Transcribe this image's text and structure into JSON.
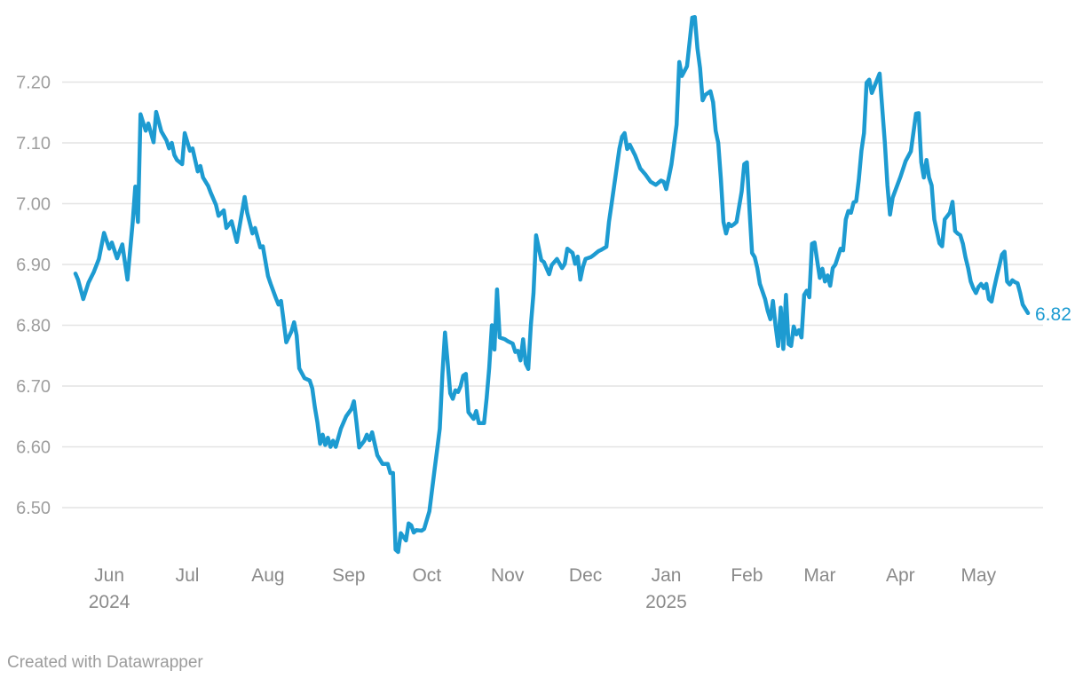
{
  "attribution": {
    "text": "Created with Datawrapper"
  },
  "chart_data": {
    "type": "line",
    "title": "",
    "xlabel": "",
    "ylabel": "",
    "legend": "none",
    "grid": "horizontal-only",
    "ylim": [
      6.4,
      7.32
    ],
    "x_range": [
      "2024-05-19",
      "2025-05-20"
    ],
    "end_label": "6.82",
    "colors": {
      "line": "#1D9BD1",
      "grid": "#E4E4E4",
      "y_tick_text": "#9E9E9E",
      "x_tick_text": "#8A8A8A",
      "attribution_text": "#9C9C9C",
      "background": "#FFFFFF"
    },
    "y_axis": {
      "ticks": [
        {
          "value": 6.5,
          "label": "6.50"
        },
        {
          "value": 6.6,
          "label": "6.60"
        },
        {
          "value": 6.7,
          "label": "6.70"
        },
        {
          "value": 6.8,
          "label": "6.80"
        },
        {
          "value": 6.9,
          "label": "6.90"
        },
        {
          "value": 7.0,
          "label": "7.00"
        },
        {
          "value": 7.1,
          "label": "7.10"
        },
        {
          "value": 7.2,
          "label": "7.20"
        }
      ]
    },
    "x_axis": {
      "ticks": [
        {
          "label": "Jun",
          "sub": "2024",
          "date": "2024-06-01"
        },
        {
          "label": "Jul",
          "sub": "",
          "date": "2024-07-01"
        },
        {
          "label": "Aug",
          "sub": "",
          "date": "2024-08-01"
        },
        {
          "label": "Sep",
          "sub": "",
          "date": "2024-09-01"
        },
        {
          "label": "Oct",
          "sub": "",
          "date": "2024-10-01"
        },
        {
          "label": "Nov",
          "sub": "",
          "date": "2024-11-01"
        },
        {
          "label": "Dec",
          "sub": "",
          "date": "2024-12-01"
        },
        {
          "label": "Jan",
          "sub": "2025",
          "date": "2025-01-01"
        },
        {
          "label": "Feb",
          "sub": "",
          "date": "2025-02-01"
        },
        {
          "label": "Mar",
          "sub": "",
          "date": "2025-03-01"
        },
        {
          "label": "Apr",
          "sub": "",
          "date": "2025-04-01"
        },
        {
          "label": "May",
          "sub": "",
          "date": "2025-05-01"
        }
      ]
    },
    "points": [
      [
        "2024-05-19",
        6.885
      ],
      [
        "2024-05-20",
        6.875
      ],
      [
        "2024-05-22",
        6.843
      ],
      [
        "2024-05-24",
        6.87
      ],
      [
        "2024-05-26",
        6.887
      ],
      [
        "2024-05-28",
        6.909
      ],
      [
        "2024-05-30",
        6.952
      ],
      [
        "2024-06-01",
        6.926
      ],
      [
        "2024-06-02",
        6.936
      ],
      [
        "2024-06-04",
        6.91
      ],
      [
        "2024-06-06",
        6.933
      ],
      [
        "2024-06-08",
        6.875
      ],
      [
        "2024-06-10",
        6.97
      ],
      [
        "2024-06-11",
        7.028
      ],
      [
        "2024-06-12",
        6.97
      ],
      [
        "2024-06-13",
        7.147
      ],
      [
        "2024-06-15",
        7.12
      ],
      [
        "2024-06-16",
        7.132
      ],
      [
        "2024-06-18",
        7.101
      ],
      [
        "2024-06-19",
        7.151
      ],
      [
        "2024-06-21",
        7.119
      ],
      [
        "2024-06-23",
        7.104
      ],
      [
        "2024-06-24",
        7.091
      ],
      [
        "2024-06-25",
        7.1
      ],
      [
        "2024-06-26",
        7.08
      ],
      [
        "2024-06-27",
        7.072
      ],
      [
        "2024-06-29",
        7.065
      ],
      [
        "2024-06-30",
        7.116
      ],
      [
        "2024-07-02",
        7.087
      ],
      [
        "2024-07-03",
        7.091
      ],
      [
        "2024-07-05",
        7.053
      ],
      [
        "2024-07-06",
        7.062
      ],
      [
        "2024-07-07",
        7.043
      ],
      [
        "2024-07-09",
        7.029
      ],
      [
        "2024-07-10",
        7.018
      ],
      [
        "2024-07-12",
        6.998
      ],
      [
        "2024-07-13",
        6.98
      ],
      [
        "2024-07-15",
        6.989
      ],
      [
        "2024-07-16",
        6.96
      ],
      [
        "2024-07-18",
        6.971
      ],
      [
        "2024-07-20",
        6.937
      ],
      [
        "2024-07-23",
        7.011
      ],
      [
        "2024-07-24",
        6.985
      ],
      [
        "2024-07-26",
        6.951
      ],
      [
        "2024-07-27",
        6.96
      ],
      [
        "2024-07-29",
        6.928
      ],
      [
        "2024-07-30",
        6.93
      ],
      [
        "2024-08-01",
        6.881
      ],
      [
        "2024-08-02",
        6.868
      ],
      [
        "2024-08-04",
        6.845
      ],
      [
        "2024-08-05",
        6.834
      ],
      [
        "2024-08-06",
        6.84
      ],
      [
        "2024-08-07",
        6.807
      ],
      [
        "2024-08-08",
        6.772
      ],
      [
        "2024-08-10",
        6.79
      ],
      [
        "2024-08-11",
        6.805
      ],
      [
        "2024-08-12",
        6.783
      ],
      [
        "2024-08-13",
        6.729
      ],
      [
        "2024-08-15",
        6.713
      ],
      [
        "2024-08-17",
        6.709
      ],
      [
        "2024-08-18",
        6.696
      ],
      [
        "2024-08-19",
        6.665
      ],
      [
        "2024-08-20",
        6.64
      ],
      [
        "2024-08-21",
        6.605
      ],
      [
        "2024-08-22",
        6.62
      ],
      [
        "2024-08-23",
        6.603
      ],
      [
        "2024-08-24",
        6.615
      ],
      [
        "2024-08-25",
        6.6
      ],
      [
        "2024-08-26",
        6.61
      ],
      [
        "2024-08-27",
        6.6
      ],
      [
        "2024-08-29",
        6.63
      ],
      [
        "2024-08-31",
        6.65
      ],
      [
        "2024-09-02",
        6.662
      ],
      [
        "2024-09-03",
        6.675
      ],
      [
        "2024-09-04",
        6.64
      ],
      [
        "2024-09-05",
        6.599
      ],
      [
        "2024-09-07",
        6.61
      ],
      [
        "2024-09-08",
        6.62
      ],
      [
        "2024-09-09",
        6.611
      ],
      [
        "2024-09-10",
        6.624
      ],
      [
        "2024-09-12",
        6.586
      ],
      [
        "2024-09-13",
        6.579
      ],
      [
        "2024-09-14",
        6.572
      ],
      [
        "2024-09-16",
        6.572
      ],
      [
        "2024-09-17",
        6.557
      ],
      [
        "2024-09-18",
        6.557
      ],
      [
        "2024-09-19",
        6.431
      ],
      [
        "2024-09-20",
        6.427
      ],
      [
        "2024-09-21",
        6.458
      ],
      [
        "2024-09-23",
        6.446
      ],
      [
        "2024-09-24",
        6.474
      ],
      [
        "2024-09-25",
        6.471
      ],
      [
        "2024-09-26",
        6.459
      ],
      [
        "2024-09-27",
        6.463
      ],
      [
        "2024-09-29",
        6.462
      ],
      [
        "2024-09-30",
        6.465
      ],
      [
        "2024-10-02",
        6.494
      ],
      [
        "2024-10-03",
        6.528
      ],
      [
        "2024-10-04",
        6.563
      ],
      [
        "2024-10-05",
        6.596
      ],
      [
        "2024-10-06",
        6.63
      ],
      [
        "2024-10-07",
        6.72
      ],
      [
        "2024-10-08",
        6.788
      ],
      [
        "2024-10-09",
        6.74
      ],
      [
        "2024-10-10",
        6.688
      ],
      [
        "2024-10-11",
        6.679
      ],
      [
        "2024-10-12",
        6.693
      ],
      [
        "2024-10-13",
        6.69
      ],
      [
        "2024-10-14",
        6.7
      ],
      [
        "2024-10-15",
        6.717
      ],
      [
        "2024-10-16",
        6.72
      ],
      [
        "2024-10-17",
        6.657
      ],
      [
        "2024-10-19",
        6.646
      ],
      [
        "2024-10-20",
        6.659
      ],
      [
        "2024-10-21",
        6.639
      ],
      [
        "2024-10-23",
        6.639
      ],
      [
        "2024-10-24",
        6.68
      ],
      [
        "2024-10-25",
        6.73
      ],
      [
        "2024-10-26",
        6.8
      ],
      [
        "2024-10-27",
        6.76
      ],
      [
        "2024-10-28",
        6.859
      ],
      [
        "2024-10-29",
        6.78
      ],
      [
        "2024-10-31",
        6.777
      ],
      [
        "2024-11-01",
        6.774
      ],
      [
        "2024-11-03",
        6.77
      ],
      [
        "2024-11-04",
        6.756
      ],
      [
        "2024-11-05",
        6.758
      ],
      [
        "2024-11-06",
        6.742
      ],
      [
        "2024-11-07",
        6.777
      ],
      [
        "2024-11-08",
        6.737
      ],
      [
        "2024-11-09",
        6.728
      ],
      [
        "2024-11-10",
        6.8
      ],
      [
        "2024-11-11",
        6.853
      ],
      [
        "2024-11-12",
        6.948
      ],
      [
        "2024-11-14",
        6.907
      ],
      [
        "2024-11-15",
        6.904
      ],
      [
        "2024-11-17",
        6.884
      ],
      [
        "2024-11-18",
        6.899
      ],
      [
        "2024-11-20",
        6.909
      ],
      [
        "2024-11-22",
        6.894
      ],
      [
        "2024-11-23",
        6.901
      ],
      [
        "2024-11-24",
        6.926
      ],
      [
        "2024-11-26",
        6.919
      ],
      [
        "2024-11-27",
        6.901
      ],
      [
        "2024-11-28",
        6.913
      ],
      [
        "2024-11-29",
        6.875
      ],
      [
        "2024-11-30",
        6.896
      ],
      [
        "2024-12-01",
        6.909
      ],
      [
        "2024-12-03",
        6.912
      ],
      [
        "2024-12-04",
        6.915
      ],
      [
        "2024-12-06",
        6.922
      ],
      [
        "2024-12-07",
        6.924
      ],
      [
        "2024-12-09",
        6.929
      ],
      [
        "2024-12-10",
        6.97
      ],
      [
        "2024-12-11",
        6.999
      ],
      [
        "2024-12-12",
        7.03
      ],
      [
        "2024-12-13",
        7.06
      ],
      [
        "2024-12-14",
        7.09
      ],
      [
        "2024-12-15",
        7.11
      ],
      [
        "2024-12-16",
        7.116
      ],
      [
        "2024-12-17",
        7.09
      ],
      [
        "2024-12-18",
        7.097
      ],
      [
        "2024-12-20",
        7.08
      ],
      [
        "2024-12-22",
        7.058
      ],
      [
        "2024-12-24",
        7.048
      ],
      [
        "2024-12-26",
        7.036
      ],
      [
        "2024-12-28",
        7.031
      ],
      [
        "2024-12-30",
        7.038
      ],
      [
        "2024-12-31",
        7.036
      ],
      [
        "2025-01-01",
        7.024
      ],
      [
        "2025-01-02",
        7.043
      ],
      [
        "2025-01-03",
        7.065
      ],
      [
        "2025-01-04",
        7.097
      ],
      [
        "2025-01-05",
        7.13
      ],
      [
        "2025-01-06",
        7.233
      ],
      [
        "2025-01-07",
        7.21
      ],
      [
        "2025-01-09",
        7.226
      ],
      [
        "2025-01-11",
        7.306
      ],
      [
        "2025-01-12",
        7.307
      ],
      [
        "2025-01-13",
        7.255
      ],
      [
        "2025-01-14",
        7.223
      ],
      [
        "2025-01-15",
        7.17
      ],
      [
        "2025-01-16",
        7.179
      ],
      [
        "2025-01-18",
        7.185
      ],
      [
        "2025-01-19",
        7.167
      ],
      [
        "2025-01-20",
        7.12
      ],
      [
        "2025-01-21",
        7.1
      ],
      [
        "2025-01-22",
        7.04
      ],
      [
        "2025-01-23",
        6.97
      ],
      [
        "2025-01-24",
        6.951
      ],
      [
        "2025-01-25",
        6.967
      ],
      [
        "2025-01-26",
        6.963
      ],
      [
        "2025-01-27",
        6.966
      ],
      [
        "2025-01-28",
        6.97
      ],
      [
        "2025-01-30",
        7.02
      ],
      [
        "2025-01-31",
        7.065
      ],
      [
        "2025-02-01",
        7.068
      ],
      [
        "2025-02-02",
        6.99
      ],
      [
        "2025-02-03",
        6.919
      ],
      [
        "2025-02-04",
        6.912
      ],
      [
        "2025-02-05",
        6.894
      ],
      [
        "2025-02-06",
        6.868
      ],
      [
        "2025-02-08",
        6.843
      ],
      [
        "2025-02-09",
        6.824
      ],
      [
        "2025-02-10",
        6.81
      ],
      [
        "2025-02-11",
        6.84
      ],
      [
        "2025-02-12",
        6.8
      ],
      [
        "2025-02-13",
        6.766
      ],
      [
        "2025-02-14",
        6.829
      ],
      [
        "2025-02-15",
        6.761
      ],
      [
        "2025-02-16",
        6.85
      ],
      [
        "2025-02-17",
        6.769
      ],
      [
        "2025-02-18",
        6.766
      ],
      [
        "2025-02-19",
        6.798
      ],
      [
        "2025-02-20",
        6.785
      ],
      [
        "2025-02-21",
        6.792
      ],
      [
        "2025-02-22",
        6.78
      ],
      [
        "2025-02-23",
        6.85
      ],
      [
        "2025-02-24",
        6.857
      ],
      [
        "2025-02-25",
        6.846
      ],
      [
        "2025-02-26",
        6.934
      ],
      [
        "2025-02-27",
        6.936
      ],
      [
        "2025-02-28",
        6.907
      ],
      [
        "2025-03-01",
        6.878
      ],
      [
        "2025-03-02",
        6.893
      ],
      [
        "2025-03-03",
        6.872
      ],
      [
        "2025-03-04",
        6.882
      ],
      [
        "2025-03-05",
        6.865
      ],
      [
        "2025-03-06",
        6.894
      ],
      [
        "2025-03-07",
        6.9
      ],
      [
        "2025-03-09",
        6.926
      ],
      [
        "2025-03-10",
        6.923
      ],
      [
        "2025-03-11",
        6.974
      ],
      [
        "2025-03-12",
        6.988
      ],
      [
        "2025-03-13",
        6.985
      ],
      [
        "2025-03-14",
        7.002
      ],
      [
        "2025-03-15",
        7.004
      ],
      [
        "2025-03-16",
        7.039
      ],
      [
        "2025-03-17",
        7.087
      ],
      [
        "2025-03-18",
        7.116
      ],
      [
        "2025-03-19",
        7.199
      ],
      [
        "2025-03-20",
        7.204
      ],
      [
        "2025-03-21",
        7.182
      ],
      [
        "2025-03-24",
        7.214
      ],
      [
        "2025-03-26",
        7.1
      ],
      [
        "2025-03-27",
        7.03
      ],
      [
        "2025-03-28",
        6.982
      ],
      [
        "2025-03-29",
        7.01
      ],
      [
        "2025-04-01",
        7.044
      ],
      [
        "2025-04-03",
        7.07
      ],
      [
        "2025-04-05",
        7.086
      ],
      [
        "2025-04-07",
        7.148
      ],
      [
        "2025-04-08",
        7.149
      ],
      [
        "2025-04-09",
        7.068
      ],
      [
        "2025-04-10",
        7.043
      ],
      [
        "2025-04-11",
        7.072
      ],
      [
        "2025-04-12",
        7.043
      ],
      [
        "2025-04-13",
        7.03
      ],
      [
        "2025-04-14",
        6.974
      ],
      [
        "2025-04-16",
        6.935
      ],
      [
        "2025-04-17",
        6.93
      ],
      [
        "2025-04-18",
        6.974
      ],
      [
        "2025-04-20",
        6.985
      ],
      [
        "2025-04-21",
        7.003
      ],
      [
        "2025-04-22",
        6.955
      ],
      [
        "2025-04-23",
        6.951
      ],
      [
        "2025-04-24",
        6.948
      ],
      [
        "2025-04-25",
        6.934
      ],
      [
        "2025-04-26",
        6.912
      ],
      [
        "2025-04-27",
        6.894
      ],
      [
        "2025-04-28",
        6.872
      ],
      [
        "2025-04-29",
        6.861
      ],
      [
        "2025-04-30",
        6.853
      ],
      [
        "2025-05-01",
        6.863
      ],
      [
        "2025-05-02",
        6.868
      ],
      [
        "2025-05-03",
        6.861
      ],
      [
        "2025-05-04",
        6.868
      ],
      [
        "2025-05-05",
        6.843
      ],
      [
        "2025-05-06",
        6.839
      ],
      [
        "2025-05-07",
        6.861
      ],
      [
        "2025-05-08",
        6.88
      ],
      [
        "2025-05-10",
        6.916
      ],
      [
        "2025-05-11",
        6.921
      ],
      [
        "2025-05-12",
        6.872
      ],
      [
        "2025-05-13",
        6.867
      ],
      [
        "2025-05-14",
        6.874
      ],
      [
        "2025-05-15",
        6.871
      ],
      [
        "2025-05-16",
        6.869
      ],
      [
        "2025-05-17",
        6.853
      ],
      [
        "2025-05-18",
        6.834
      ],
      [
        "2025-05-20",
        6.82
      ]
    ]
  }
}
